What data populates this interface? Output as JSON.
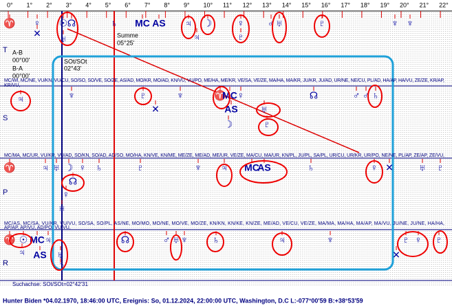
{
  "scale": {
    "degrees": [
      "0°",
      "1°",
      "2°",
      "3°",
      "4°",
      "5°",
      "6°",
      "7°",
      "8°",
      "9°",
      "10°",
      "11°",
      "12°",
      "13°",
      "14°",
      "15°",
      "16°",
      "17°",
      "18°",
      "19°",
      "20°",
      "21°",
      "22°"
    ]
  },
  "annotations": {
    "sum_label": "Summe",
    "sum_value": "05°25'",
    "ab_label": "A-B",
    "ab_value": "00°00'",
    "ba_label": "B-A",
    "ba_value": "00°00'",
    "axis_label": "SOt/SOt",
    "axis_value": "02°43'"
  },
  "rows": [
    {
      "letter": "T",
      "glyphs": [
        "♈",
        "♀",
        "☉",
        "☊",
        "♄",
        "MC",
        "AS",
        "♃",
        "☽",
        "♀",
        "♂",
        "♅",
        "♇",
        "♆",
        "♆",
        "✕",
        "♅",
        "♃",
        "♇"
      ],
      "midpoints": [
        "MC/WI, MC/NE, VU/KN, VU/CU, SO/SO, SO/VE, SO/ZE, AS/AD, MO/KR, MO/AD, KN/VU, VU/PO, ME/HA, ME/KR, VE/SA, VE/ZE, MA/HA, MA/KR, JU/KR, JU/AD, UR/NE, NE/CU, PL/AD, HA/AP, HA/VU, ZE/ZE, KR/AP,",
        "KR/VU,"
      ]
    },
    {
      "letter": "S",
      "glyphs": [
        "♃",
        "♆",
        "♇",
        "✕",
        "♆",
        "♈",
        "MC",
        "♀",
        "☊",
        "♂",
        "♂",
        "♄",
        "AS",
        "♅",
        "♇",
        "☽"
      ],
      "midpoints": [
        "MC/MA, MC/UR, VU/KR, VU/AD, SO/KN, SO/AD, AD/SO, MO/HA, KN/VE, KN/ME, ME/ZE, ME/AD, ME/UR, VE/ZE, MA/CU, MA/UR, KN/PL, JU/PL, SA/PL, UR/CU, UR/KR, UR/PO, NE/NE, PL/AP, ZE/AP, ZE/VU,"
      ]
    },
    {
      "letter": "P",
      "glyphs": [
        "♈",
        "♃",
        "♅",
        "☽",
        "♀",
        "♄",
        "♇",
        "♆",
        "♃",
        "MC",
        "AS",
        "♄",
        "♀",
        "✕",
        "♅",
        "♇",
        "☊",
        "♀",
        "♅"
      ],
      "midpoints": [
        "MC/AS, MC/SA, VU/KR, VU/VU, SO/SA, SO/PL, AS/NE, MO/MO, MO/NE, MO/VE, MO/ZE, KN/KN, KN/KE, KN/ZE, ME/AD, VE/CU, VE/ZE, MA/MA, MA/HA, MA/AP, MA/VU, JU/NE, JU/NE, HA/HA,",
        "AP/AP, AP/VU, AD/PO, VU/VU,"
      ]
    },
    {
      "letter": "R",
      "glyphs": [
        "♈",
        "☉",
        "MC",
        "♃",
        "AS",
        "♅",
        "☽",
        "♃",
        "☊",
        "♂",
        "♅",
        "♆",
        "♄",
        "♃",
        "♆",
        "♇",
        "♀",
        "♇",
        "✕"
      ],
      "midpoints": []
    }
  ],
  "footer": {
    "search_axis": "Suchachse: SOt/SOt=02°42'31",
    "info": "Hunter Biden  *04.02.1970, 18:46:00 UTC, Ereignis: So, 01.12.2024, 22:00:00 UTC, Washington, D.C L:-077°00'59 B:+38°53'59"
  }
}
